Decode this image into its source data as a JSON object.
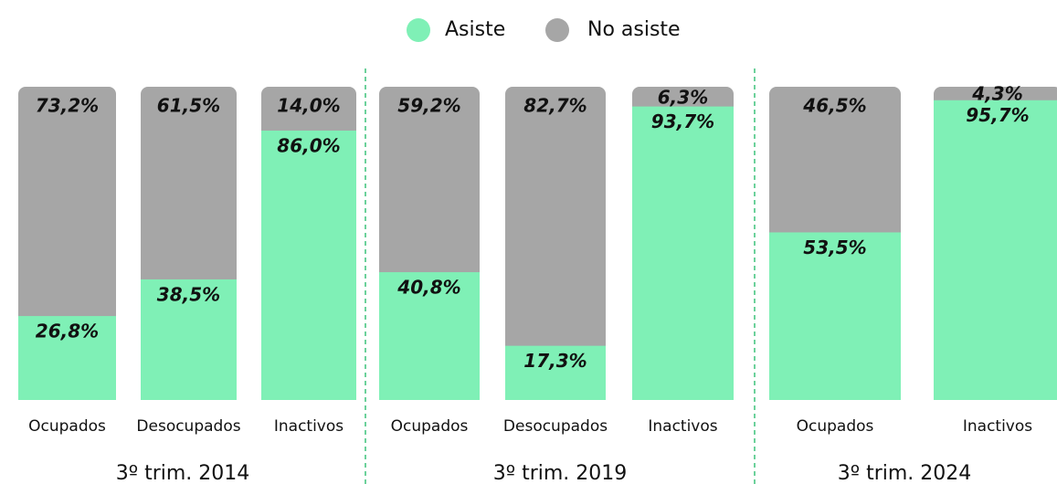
{
  "chart_data": {
    "type": "stacked-bar",
    "categories": [
      "Ocupados",
      "Desocupados",
      "Inactivos",
      "Ocupados",
      "Desocupados",
      "Inactivos",
      "Ocupados",
      "Inactivos"
    ],
    "groups": [
      "3º trim. 2014",
      "3º trim. 2019",
      "3º trim. 2024"
    ],
    "series": [
      {
        "name": "Asiste",
        "color": "#7ff0b6",
        "values": [
          26.8,
          38.5,
          86.0,
          40.8,
          17.3,
          93.7,
          53.5,
          95.7
        ],
        "value_labels": [
          "26,8%",
          "38,5%",
          "86,0%",
          "40,8%",
          "17,3%",
          "93,7%",
          "53,5%",
          "95,7%"
        ]
      },
      {
        "name": "No asiste",
        "color": "#a6a6a6",
        "values": [
          73.2,
          61.5,
          14.0,
          59.2,
          82.7,
          6.3,
          46.5,
          4.3
        ],
        "value_labels": [
          "73,2%",
          "61,5%",
          "14,0%",
          "59,2%",
          "82,7%",
          "6,3%",
          "46,5%",
          "4,3%"
        ]
      }
    ],
    "ylim": [
      0,
      100
    ]
  }
}
